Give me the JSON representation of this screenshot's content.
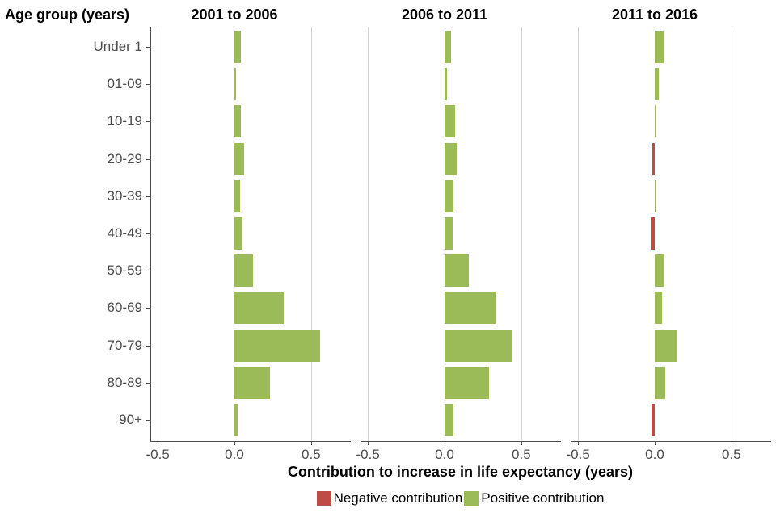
{
  "chart_data": {
    "type": "bar",
    "orientation": "horizontal",
    "y_axis_title": "Age group (years)",
    "xlabel": "Contribution to increase in life expectancy (years)",
    "categories": [
      "Under 1",
      "01-09",
      "10-19",
      "20-29",
      "30-39",
      "40-49",
      "50-59",
      "60-69",
      "70-79",
      "80-89",
      "90+"
    ],
    "series": [
      {
        "name": "2001 to 2006",
        "values": [
          0.04,
          0.01,
          0.04,
          0.065,
          0.035,
          0.055,
          0.12,
          0.32,
          0.56,
          0.23,
          0.02
        ]
      },
      {
        "name": "2006 to 2011",
        "values": [
          0.04,
          0.015,
          0.07,
          0.08,
          0.06,
          0.055,
          0.16,
          0.33,
          0.44,
          0.29,
          0.06
        ]
      },
      {
        "name": "2011 to 2016",
        "values": [
          0.06,
          0.025,
          0.005,
          -0.015,
          0.005,
          -0.025,
          0.065,
          0.05,
          0.15,
          0.07,
          -0.02
        ]
      }
    ],
    "xlim": [
      -0.55,
      0.76
    ],
    "xticks": {
      "values": [
        -0.5,
        0.0,
        0.5
      ],
      "labels": [
        "-0.5",
        "0.0",
        "0.5"
      ]
    },
    "grid": "vertical lines at -0.5 and 0.5 only",
    "legend_position": "bottom center",
    "legend": [
      {
        "label": "Negative contribution",
        "color": "#be4b48"
      },
      {
        "label": "Positive contribution",
        "color": "#9bbb59"
      }
    ],
    "colors": {
      "positive": "#9bbb59",
      "negative": "#be4b48",
      "axis": "#4c4c4c",
      "gridline": "#d3d3d3",
      "tick_text": "#4c4c4c",
      "title_text": "#000000",
      "background": "#ffffff"
    }
  }
}
